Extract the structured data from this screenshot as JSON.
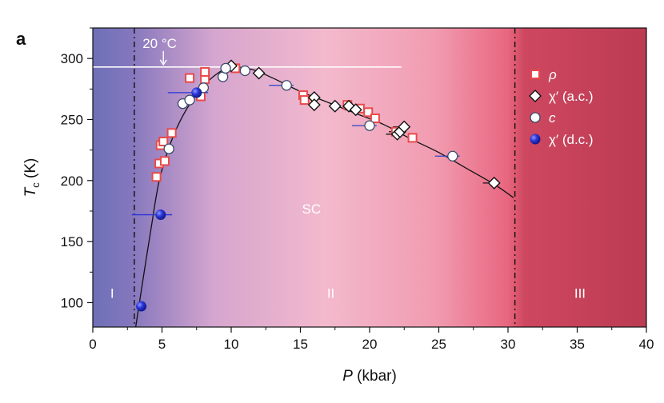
{
  "chart_data": {
    "type": "scatter",
    "panel_label": "a",
    "xlabel": "P (kbar)",
    "xlabel_var": "P",
    "xlabel_unit": " (kbar)",
    "ylabel": "Tc (K)",
    "ylabel_var": "T",
    "ylabel_sub": "c",
    "ylabel_unit": " (K)",
    "xlim": [
      0,
      40
    ],
    "ylim": [
      80,
      325
    ],
    "x_ticks": [
      "0",
      "5",
      "10",
      "15",
      "20",
      "25",
      "30",
      "35",
      "40"
    ],
    "x_tick_values": [
      0,
      5,
      10,
      15,
      20,
      25,
      30,
      35,
      40
    ],
    "y_ticks": [
      "100",
      "150",
      "200",
      "250",
      "300"
    ],
    "y_tick_values": [
      100,
      150,
      200,
      250,
      300
    ],
    "grid": false,
    "legend_position": "top-right",
    "region_labels": [
      "I",
      "II",
      "III",
      "SC"
    ],
    "region_label_positions": [
      [
        1.4,
        108
      ],
      [
        17.2,
        108
      ],
      [
        35.2,
        108
      ],
      [
        15.8,
        177
      ]
    ],
    "phase_boundaries": [
      3.0,
      30.5
    ],
    "annotation": {
      "text": "20 °C",
      "y": 293,
      "x_end": 22.3,
      "arrow_x": 5.1
    },
    "colors": {
      "region_I": "#6e6fb6",
      "region_II_mid": "#f2b6c8",
      "region_III": "#c23b55",
      "rho_marker": "#e84a4a",
      "dc_marker": "#2a35d6",
      "fit_line": "#111111"
    },
    "series": [
      {
        "name": "ρ",
        "marker": "square",
        "points": [
          [
            4.6,
            203
          ],
          [
            4.8,
            214
          ],
          [
            4.9,
            229
          ],
          [
            5.1,
            232
          ],
          [
            5.2,
            216
          ],
          [
            5.7,
            239
          ],
          [
            7.0,
            284
          ],
          [
            7.8,
            269
          ],
          [
            8.1,
            283
          ],
          [
            8.1,
            289
          ],
          [
            10.3,
            292
          ],
          [
            15.2,
            270
          ],
          [
            15.3,
            266
          ],
          [
            18.4,
            262
          ],
          [
            19.3,
            259
          ],
          [
            19.9,
            256
          ],
          [
            20.4,
            251
          ],
          [
            21.9,
            240
          ],
          [
            23.1,
            235
          ]
        ]
      },
      {
        "name": "χ′ (a.c.)",
        "marker": "diamond",
        "points": [
          [
            10.0,
            294
          ],
          [
            12.0,
            288
          ],
          [
            16.0,
            268
          ],
          [
            16.0,
            262
          ],
          [
            17.5,
            261
          ],
          [
            18.5,
            261
          ],
          [
            19.0,
            258
          ],
          [
            22.0,
            238
          ],
          [
            22.2,
            240
          ],
          [
            22.5,
            244
          ],
          [
            29.0,
            198
          ]
        ]
      },
      {
        "name": "c",
        "marker": "circle",
        "points": [
          [
            5.5,
            226
          ],
          [
            6.5,
            263
          ],
          [
            7.0,
            266
          ],
          [
            8.0,
            276
          ],
          [
            9.4,
            285
          ],
          [
            9.6,
            292
          ],
          [
            11.0,
            290
          ],
          [
            14.0,
            278
          ],
          [
            20.0,
            245
          ],
          [
            26.0,
            220
          ]
        ]
      },
      {
        "name": "χ′ (d.c.)",
        "marker": "sphere",
        "points": [
          [
            3.5,
            97
          ],
          [
            4.9,
            172
          ],
          [
            7.5,
            272
          ]
        ]
      }
    ],
    "fit_curve": [
      [
        3.1,
        80
      ],
      [
        3.6,
        117
      ],
      [
        4.2,
        160
      ],
      [
        4.8,
        200
      ],
      [
        5.6,
        230
      ],
      [
        6.5,
        253
      ],
      [
        7.6,
        272
      ],
      [
        8.8,
        286
      ],
      [
        10.0,
        293
      ],
      [
        11.5,
        291
      ],
      [
        13.0,
        284
      ],
      [
        15.0,
        273
      ],
      [
        17.0,
        264
      ],
      [
        19.0,
        255
      ],
      [
        21.0,
        246
      ],
      [
        23.0,
        234
      ],
      [
        25.0,
        223
      ],
      [
        27.0,
        210
      ],
      [
        29.0,
        197
      ],
      [
        30.4,
        186
      ]
    ]
  }
}
